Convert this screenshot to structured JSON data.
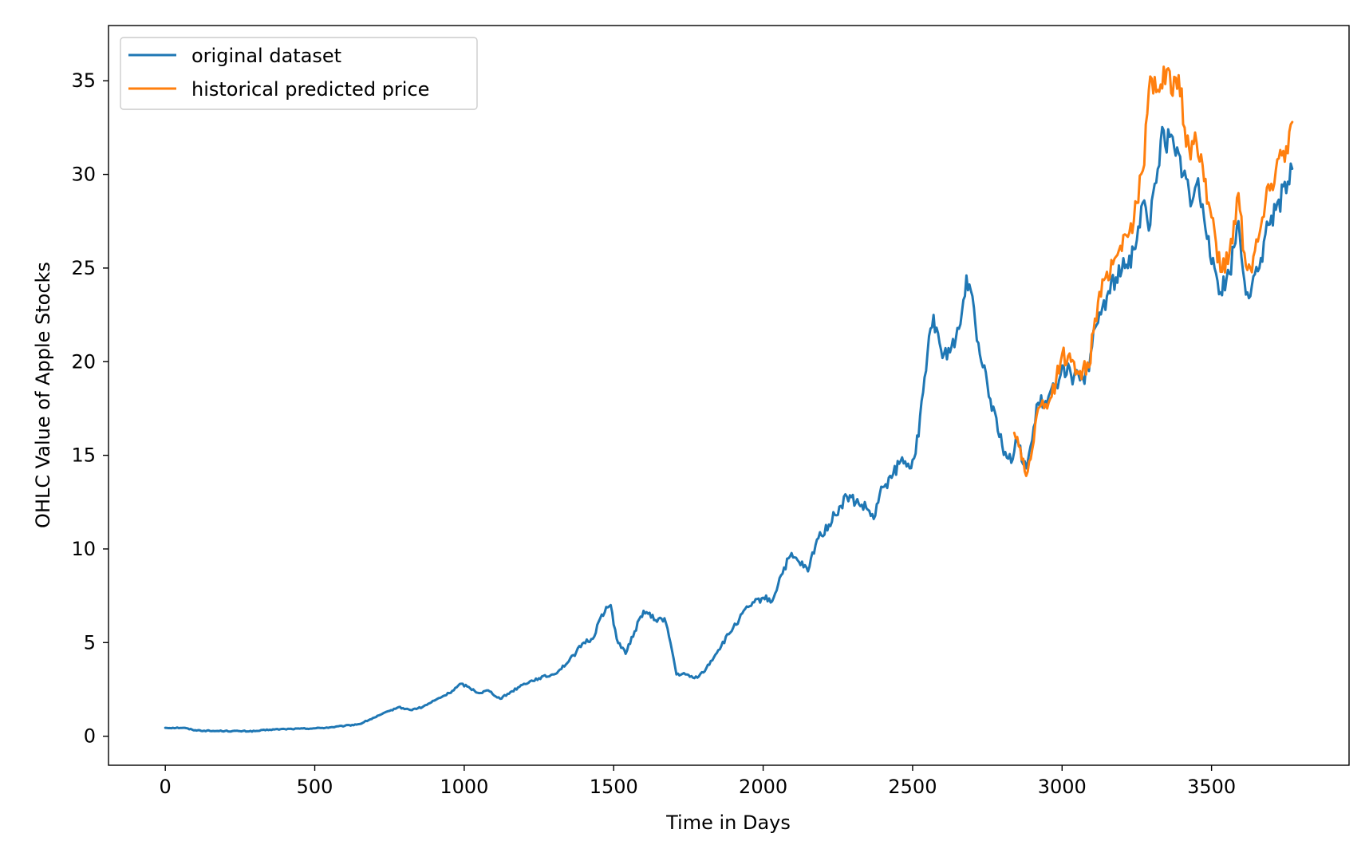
{
  "chart_data": {
    "type": "line",
    "title": "",
    "xlabel": "Time in Days",
    "ylabel": "OHLC Value of Apple Stocks",
    "xlim": [
      -190,
      3960
    ],
    "ylim": [
      -1.55,
      37.95
    ],
    "x_ticks": [
      0,
      500,
      1000,
      1500,
      2000,
      2500,
      3000,
      3500
    ],
    "y_ticks": [
      0,
      5,
      10,
      15,
      20,
      25,
      30,
      35
    ],
    "grid": false,
    "legend_position": "top-left",
    "series": [
      {
        "name": "original dataset",
        "color": "#1f77b4",
        "points": [
          [
            0,
            0.45
          ],
          [
            60,
            0.45
          ],
          [
            100,
            0.32
          ],
          [
            150,
            0.28
          ],
          [
            200,
            0.28
          ],
          [
            250,
            0.27
          ],
          [
            300,
            0.27
          ],
          [
            350,
            0.35
          ],
          [
            400,
            0.38
          ],
          [
            450,
            0.4
          ],
          [
            500,
            0.42
          ],
          [
            550,
            0.47
          ],
          [
            600,
            0.55
          ],
          [
            650,
            0.65
          ],
          [
            700,
            1.0
          ],
          [
            750,
            1.35
          ],
          [
            780,
            1.55
          ],
          [
            820,
            1.4
          ],
          [
            860,
            1.55
          ],
          [
            900,
            1.9
          ],
          [
            950,
            2.3
          ],
          [
            990,
            2.8
          ],
          [
            1010,
            2.65
          ],
          [
            1050,
            2.3
          ],
          [
            1080,
            2.45
          ],
          [
            1120,
            2.0
          ],
          [
            1160,
            2.4
          ],
          [
            1200,
            2.8
          ],
          [
            1250,
            3.1
          ],
          [
            1300,
            3.3
          ],
          [
            1350,
            4.0
          ],
          [
            1400,
            5.0
          ],
          [
            1430,
            5.2
          ],
          [
            1460,
            6.5
          ],
          [
            1490,
            7.0
          ],
          [
            1510,
            5.2
          ],
          [
            1540,
            4.4
          ],
          [
            1570,
            5.6
          ],
          [
            1600,
            6.7
          ],
          [
            1640,
            6.2
          ],
          [
            1670,
            6.3
          ],
          [
            1690,
            5.0
          ],
          [
            1710,
            3.3
          ],
          [
            1740,
            3.3
          ],
          [
            1770,
            3.1
          ],
          [
            1800,
            3.4
          ],
          [
            1850,
            4.6
          ],
          [
            1900,
            5.8
          ],
          [
            1950,
            6.9
          ],
          [
            2000,
            7.4
          ],
          [
            2030,
            7.2
          ],
          [
            2060,
            8.6
          ],
          [
            2090,
            9.6
          ],
          [
            2120,
            9.3
          ],
          [
            2150,
            8.8
          ],
          [
            2180,
            10.5
          ],
          [
            2220,
            11.3
          ],
          [
            2260,
            12.3
          ],
          [
            2280,
            12.8
          ],
          [
            2320,
            12.4
          ],
          [
            2350,
            12.1
          ],
          [
            2370,
            11.6
          ],
          [
            2400,
            13.3
          ],
          [
            2430,
            13.8
          ],
          [
            2460,
            14.7
          ],
          [
            2490,
            14.3
          ],
          [
            2520,
            16.0
          ],
          [
            2550,
            20.5
          ],
          [
            2570,
            22.5
          ],
          [
            2600,
            20.2
          ],
          [
            2630,
            20.8
          ],
          [
            2660,
            22.0
          ],
          [
            2680,
            24.6
          ],
          [
            2700,
            23.5
          ],
          [
            2720,
            21.0
          ],
          [
            2740,
            19.8
          ],
          [
            2760,
            18.0
          ],
          [
            2780,
            17.0
          ],
          [
            2800,
            15.5
          ],
          [
            2830,
            14.6
          ],
          [
            2850,
            15.8
          ],
          [
            2880,
            14.3
          ],
          [
            2900,
            15.8
          ],
          [
            2920,
            17.8
          ],
          [
            2950,
            17.8
          ],
          [
            2980,
            18.8
          ],
          [
            3000,
            19.8
          ],
          [
            3030,
            19.3
          ],
          [
            3060,
            19.0
          ],
          [
            3090,
            19.5
          ],
          [
            3110,
            21.8
          ],
          [
            3150,
            23.5
          ],
          [
            3180,
            24.5
          ],
          [
            3210,
            25.0
          ],
          [
            3240,
            26.0
          ],
          [
            3270,
            28.5
          ],
          [
            3290,
            27.0
          ],
          [
            3310,
            29.5
          ],
          [
            3330,
            31.8
          ],
          [
            3360,
            32.0
          ],
          [
            3380,
            31.0
          ],
          [
            3410,
            30.2
          ],
          [
            3430,
            28.3
          ],
          [
            3450,
            29.5
          ],
          [
            3470,
            28.4
          ],
          [
            3490,
            26.7
          ],
          [
            3510,
            25.0
          ],
          [
            3530,
            23.7
          ],
          [
            3560,
            24.7
          ],
          [
            3590,
            27.5
          ],
          [
            3610,
            24.3
          ],
          [
            3630,
            23.5
          ],
          [
            3660,
            25.0
          ],
          [
            3680,
            26.8
          ],
          [
            3700,
            27.8
          ],
          [
            3720,
            28.5
          ],
          [
            3750,
            29.0
          ],
          [
            3770,
            30.3
          ]
        ]
      },
      {
        "name": "historical predicted price",
        "color": "#ff7f0e",
        "points": [
          [
            2840,
            16.2
          ],
          [
            2860,
            15.4
          ],
          [
            2880,
            13.9
          ],
          [
            2900,
            15.3
          ],
          [
            2920,
            17.5
          ],
          [
            2950,
            17.5
          ],
          [
            2980,
            19.0
          ],
          [
            3000,
            20.4
          ],
          [
            3030,
            20.0
          ],
          [
            3060,
            19.5
          ],
          [
            3090,
            19.7
          ],
          [
            3110,
            22.3
          ],
          [
            3150,
            24.8
          ],
          [
            3180,
            25.6
          ],
          [
            3210,
            26.8
          ],
          [
            3240,
            27.5
          ],
          [
            3270,
            30.2
          ],
          [
            3290,
            34.5
          ],
          [
            3310,
            35.2
          ],
          [
            3330,
            34.8
          ],
          [
            3350,
            35.6
          ],
          [
            3370,
            34.2
          ],
          [
            3390,
            35.3
          ],
          [
            3410,
            32.5
          ],
          [
            3430,
            30.8
          ],
          [
            3450,
            31.7
          ],
          [
            3470,
            30.5
          ],
          [
            3490,
            28.5
          ],
          [
            3510,
            27.0
          ],
          [
            3530,
            24.8
          ],
          [
            3560,
            25.8
          ],
          [
            3590,
            29.0
          ],
          [
            3610,
            25.8
          ],
          [
            3630,
            25.0
          ],
          [
            3660,
            26.8
          ],
          [
            3680,
            28.5
          ],
          [
            3700,
            29.5
          ],
          [
            3720,
            30.8
          ],
          [
            3750,
            31.5
          ],
          [
            3770,
            32.8
          ]
        ]
      }
    ]
  }
}
